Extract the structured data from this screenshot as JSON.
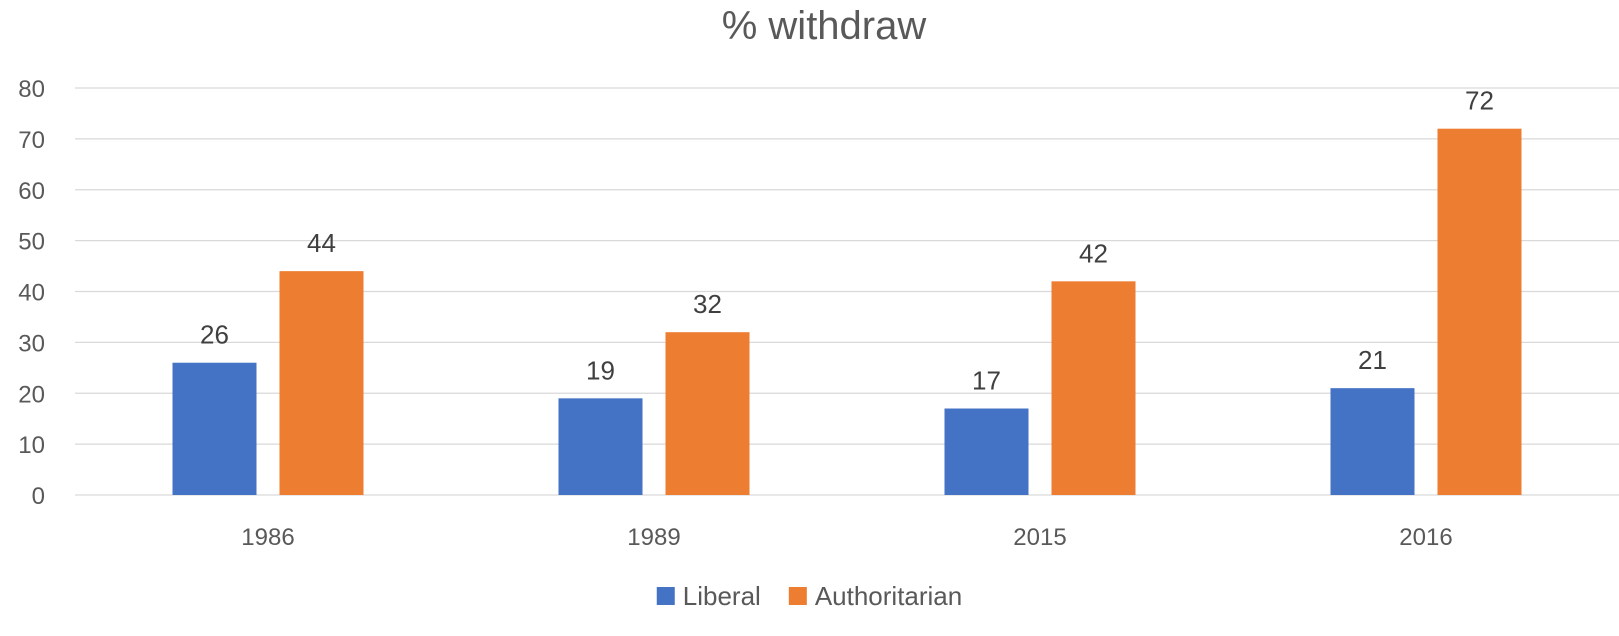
{
  "chart_data": {
    "type": "bar",
    "title": "% withdraw",
    "xlabel": "",
    "ylabel": "",
    "categories": [
      "1986",
      "1989",
      "2015",
      "2016"
    ],
    "series": [
      {
        "name": "Liberal",
        "values": [
          26,
          19,
          17,
          21
        ],
        "color": "#4472c4"
      },
      {
        "name": "Authoritarian",
        "values": [
          44,
          32,
          42,
          72
        ],
        "color": "#ed7d31"
      }
    ],
    "ylim": [
      0,
      80
    ],
    "yticks": [
      0,
      10,
      20,
      30,
      40,
      50,
      60,
      70,
      80
    ],
    "grid": true,
    "data_labels": true,
    "legend_position": "bottom"
  }
}
